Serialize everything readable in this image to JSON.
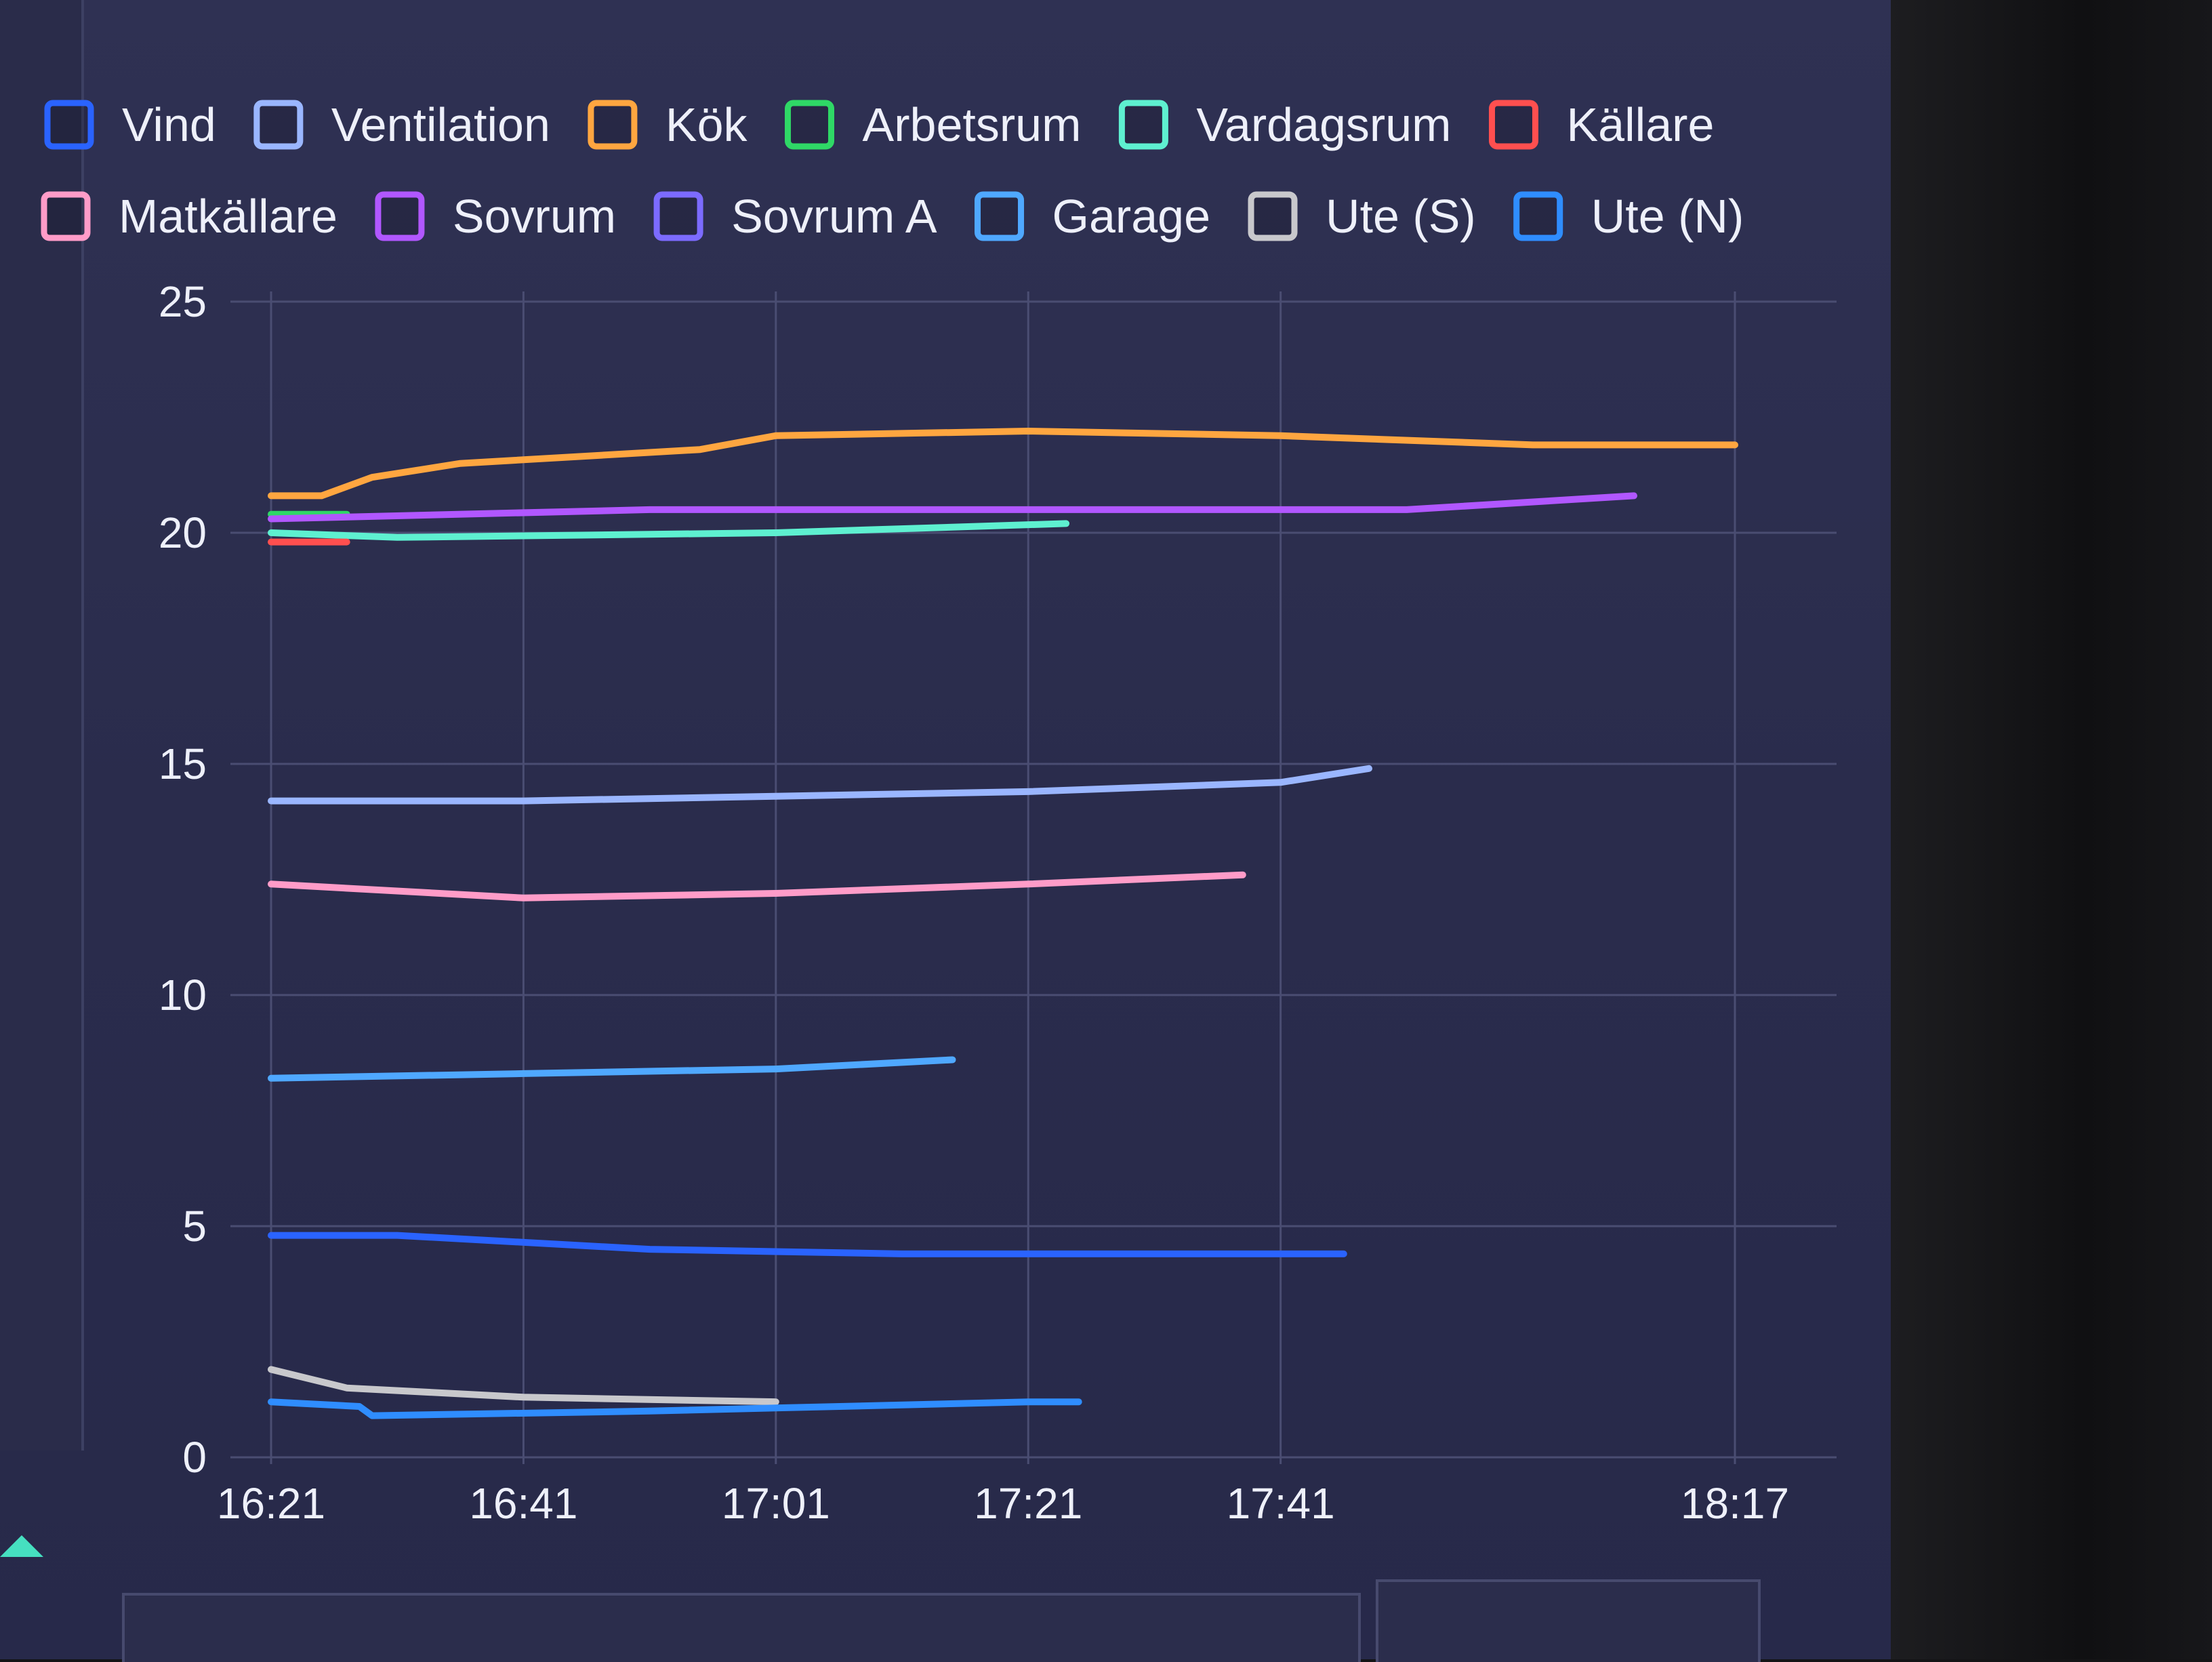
{
  "chart_data": {
    "type": "line",
    "title": "",
    "xlabel": "",
    "ylabel": "",
    "ylim": [
      0,
      25
    ],
    "yticks": [
      "0",
      "5",
      "10",
      "15",
      "20",
      "25"
    ],
    "xticks": [
      "16:21",
      "16:41",
      "17:01",
      "17:21",
      "17:41",
      "18:17"
    ],
    "xtick_minutes": [
      0,
      20,
      40,
      60,
      80,
      116
    ],
    "x_unit": "minutes after 16:21",
    "grid": true,
    "legend_position": "top",
    "series": [
      {
        "name": "Vind",
        "color": "#2a63ff",
        "points": [
          [
            0,
            4.8
          ],
          [
            10,
            4.8
          ],
          [
            30,
            4.5
          ],
          [
            50,
            4.4
          ],
          [
            70,
            4.4
          ],
          [
            85,
            4.4
          ]
        ]
      },
      {
        "name": "Ventilation",
        "color": "#9ab6ff",
        "points": [
          [
            0,
            14.2
          ],
          [
            20,
            14.2
          ],
          [
            40,
            14.3
          ],
          [
            60,
            14.4
          ],
          [
            80,
            14.6
          ],
          [
            87,
            14.9
          ]
        ]
      },
      {
        "name": "Kök",
        "color": "#ffa640",
        "points": [
          [
            0,
            20.8
          ],
          [
            4,
            20.8
          ],
          [
            8,
            21.2
          ],
          [
            15,
            21.5
          ],
          [
            34,
            21.8
          ],
          [
            40,
            22.1
          ],
          [
            60,
            22.2
          ],
          [
            80,
            22.1
          ],
          [
            100,
            21.9
          ],
          [
            116,
            21.9
          ]
        ]
      },
      {
        "name": "Arbetsrum",
        "color": "#2fd866",
        "points": [
          [
            0,
            20.4
          ],
          [
            6,
            20.4
          ]
        ]
      },
      {
        "name": "Vardagsrum",
        "color": "#5ef0d0",
        "points": [
          [
            0,
            20.0
          ],
          [
            10,
            19.9
          ],
          [
            40,
            20.0
          ],
          [
            63,
            20.2
          ]
        ]
      },
      {
        "name": "Källare",
        "color": "#ff4f4f",
        "points": [
          [
            0,
            19.8
          ],
          [
            6,
            19.8
          ]
        ]
      },
      {
        "name": "Matkällare",
        "color": "#ff9cc8",
        "points": [
          [
            0,
            12.4
          ],
          [
            20,
            12.1
          ],
          [
            40,
            12.2
          ],
          [
            60,
            12.4
          ],
          [
            77,
            12.6
          ]
        ]
      },
      {
        "name": "Sovrum",
        "color": "#b157ff",
        "points": [
          [
            0,
            20.3
          ],
          [
            30,
            20.5
          ],
          [
            60,
            20.5
          ],
          [
            90,
            20.5
          ],
          [
            108,
            20.8
          ]
        ]
      },
      {
        "name": "Sovrum A",
        "color": "#7c6bff",
        "points": []
      },
      {
        "name": "Garage",
        "color": "#4fa8ff",
        "points": [
          [
            0,
            8.2
          ],
          [
            20,
            8.3
          ],
          [
            40,
            8.4
          ],
          [
            54,
            8.6
          ]
        ]
      },
      {
        "name": "Ute (S)",
        "color": "#c8c8cc",
        "points": [
          [
            0,
            1.9
          ],
          [
            6,
            1.5
          ],
          [
            20,
            1.3
          ],
          [
            40,
            1.2
          ]
        ]
      },
      {
        "name": "Ute (N)",
        "color": "#2f8dff",
        "points": [
          [
            0,
            1.2
          ],
          [
            7,
            1.1
          ],
          [
            8,
            0.9
          ],
          [
            30,
            1.0
          ],
          [
            60,
            1.2
          ],
          [
            64,
            1.2
          ]
        ]
      }
    ]
  }
}
